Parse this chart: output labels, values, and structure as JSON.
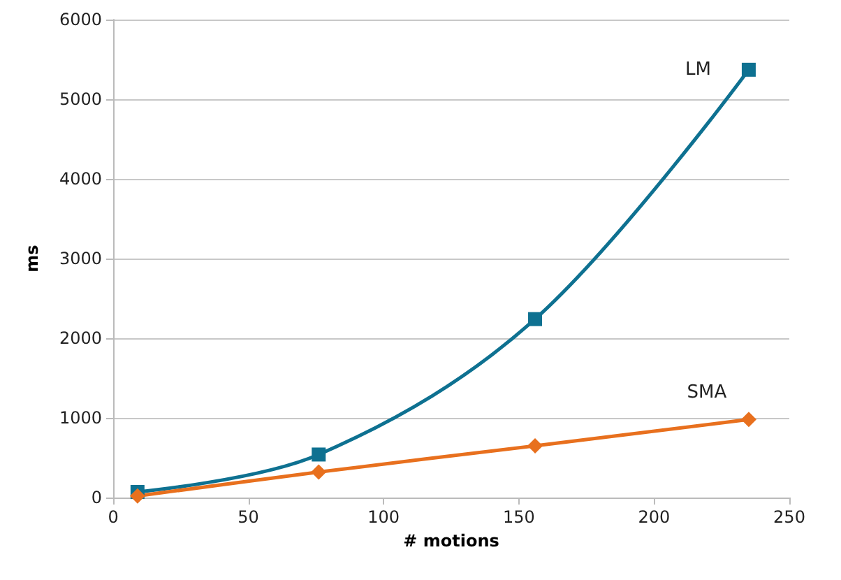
{
  "chart_data": {
    "type": "line",
    "xlabel": "# motions",
    "ylabel": "ms",
    "xlim": [
      0,
      250
    ],
    "xticks": [
      0,
      50,
      100,
      150,
      200,
      250
    ],
    "ylim": [
      0,
      6000
    ],
    "yticks": [
      0,
      1000,
      2000,
      3000,
      4000,
      5000,
      6000
    ],
    "grid": "y",
    "legend": false,
    "line_style": "solid",
    "series": [
      {
        "name": "LM",
        "color": "#0e7191",
        "marker": "square",
        "x": [
          9,
          76,
          156,
          235
        ],
        "values": [
          70,
          540,
          2240,
          5370
        ]
      },
      {
        "name": "SMA",
        "color": "#e8701e",
        "marker": "diamond",
        "x": [
          9,
          76,
          156,
          235
        ],
        "values": [
          20,
          320,
          650,
          980
        ]
      }
    ]
  }
}
